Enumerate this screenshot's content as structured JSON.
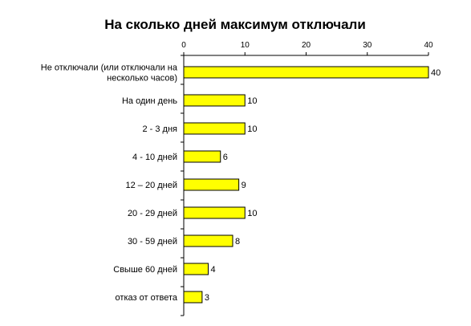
{
  "chart_data": {
    "type": "bar",
    "orientation": "horizontal",
    "title": "На сколько дней максимум отключали",
    "xlabel": "",
    "ylabel": "",
    "xlim": [
      0,
      40
    ],
    "x_ticks": [
      "0",
      "10",
      "20",
      "30",
      "40"
    ],
    "x_axis_position": "top",
    "grid": false,
    "legend": "none",
    "categories": [
      [
        "Не отключали (или отключали на",
        "несколько часов)"
      ],
      [
        "На один день"
      ],
      [
        "2 - 3 дня"
      ],
      [
        "4 - 10 дней"
      ],
      [
        "12 – 20 дней"
      ],
      [
        "20 - 29 дней"
      ],
      [
        "30 - 59 дней"
      ],
      [
        "Свыше 60 дней"
      ],
      [
        "отказ от ответа"
      ]
    ],
    "values": [
      40,
      10,
      10,
      6,
      9,
      10,
      8,
      4,
      3
    ],
    "value_labels": [
      "40",
      "10",
      "10",
      "6",
      "9",
      "10",
      "8",
      "4",
      "3"
    ],
    "colors": {
      "bar_fill": "#FFFF00",
      "bar_stroke": "#000000",
      "axis": "#000000",
      "text": "#000000"
    }
  }
}
